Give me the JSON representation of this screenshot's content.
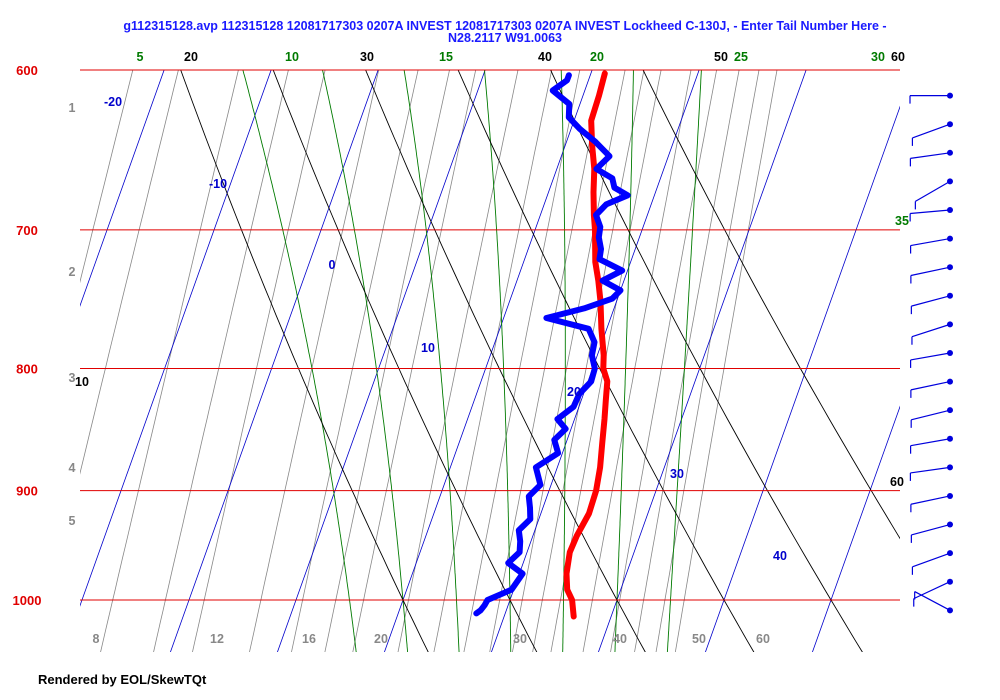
{
  "title": {
    "line1": "g112315128.avp 112315128 12081717303 0207A INVEST 12081717303 0207A INVEST Lockheed C-130J, - Enter Tail Number Here -",
    "line2": "N28.2117 W91.0063"
  },
  "credit": "Rendered by EOL/SkewTQt",
  "chart_data": {
    "type": "line",
    "chart_kind": "skew-T log-P thermodynamic diagram",
    "y_axis": {
      "type": "log",
      "range_hpa": [
        1050,
        600
      ],
      "ticks": [
        "600",
        "700",
        "800",
        "900",
        "1000"
      ]
    },
    "x_axis": {
      "range_c": [
        -5,
        40
      ],
      "bottom_ticks": [
        "8",
        "12",
        "16",
        "20",
        "30",
        "40",
        "50",
        "60"
      ]
    },
    "isotherm_labels": [
      "-20",
      "-10",
      "0",
      "10",
      "20",
      "30",
      "40"
    ],
    "dry_adiabat_labels": [
      "20",
      "30",
      "40",
      "50",
      "60",
      "10",
      "60"
    ],
    "moist_adiabat_labels": [
      "5",
      "10",
      "15",
      "20",
      "25",
      "30",
      "35"
    ],
    "altitude_labels_km": [
      "1",
      "2",
      "3",
      "4",
      "5"
    ],
    "colors": {
      "temperature": "#ff0000",
      "dewpoint": "#0000ff",
      "isobar": "#e00000",
      "isotherm": "#0000cc",
      "dry_adiabat": "#000000",
      "moist_adiabat": "#007a00",
      "mixing_ratio": "#888888",
      "wind_barb": "#0000dd"
    },
    "series": [
      {
        "name": "Temperature",
        "points": [
          [
            1016,
            26.5
          ],
          [
            1000,
            25.8
          ],
          [
            990,
            25.0
          ],
          [
            975,
            24.4
          ],
          [
            955,
            24.0
          ],
          [
            940,
            24.1
          ],
          [
            920,
            24.5
          ],
          [
            900,
            24.4
          ],
          [
            880,
            24.0
          ],
          [
            860,
            23.4
          ],
          [
            840,
            22.8
          ],
          [
            825,
            22.3
          ],
          [
            810,
            21.8
          ],
          [
            800,
            21.0
          ],
          [
            790,
            20.6
          ],
          [
            770,
            19.5
          ],
          [
            750,
            18.5
          ],
          [
            735,
            17.6
          ],
          [
            722,
            16.7
          ],
          [
            700,
            15.6
          ],
          [
            690,
            15.0
          ],
          [
            675,
            14.2
          ],
          [
            660,
            13.5
          ],
          [
            645,
            12.5
          ],
          [
            630,
            11.6
          ],
          [
            615,
            11.5
          ],
          [
            602,
            11.3
          ]
        ]
      },
      {
        "name": "Dewpoint",
        "points": [
          [
            1013,
            17.3
          ],
          [
            1010,
            17.6
          ],
          [
            1005,
            17.8
          ],
          [
            1000,
            17.9
          ],
          [
            990,
            19.8
          ],
          [
            975,
            20.3
          ],
          [
            965,
            18.6
          ],
          [
            955,
            19.3
          ],
          [
            945,
            19.0
          ],
          [
            935,
            18.5
          ],
          [
            925,
            19.2
          ],
          [
            915,
            18.8
          ],
          [
            905,
            18.3
          ],
          [
            895,
            19.0
          ],
          [
            880,
            18.0
          ],
          [
            868,
            19.6
          ],
          [
            857,
            18.8
          ],
          [
            848,
            19.5
          ],
          [
            840,
            18.4
          ],
          [
            830,
            19.5
          ],
          [
            820,
            19.6
          ],
          [
            810,
            20.3
          ],
          [
            800,
            20.2
          ],
          [
            790,
            19.5
          ],
          [
            780,
            19.3
          ],
          [
            770,
            18.3
          ],
          [
            762,
            14.0
          ],
          [
            755,
            17.2
          ],
          [
            748,
            19.5
          ],
          [
            742,
            20.0
          ],
          [
            735,
            18.0
          ],
          [
            728,
            19.5
          ],
          [
            720,
            17.0
          ],
          [
            713,
            16.8
          ],
          [
            705,
            16.2
          ],
          [
            698,
            16.0
          ],
          [
            690,
            15.2
          ],
          [
            683,
            15.8
          ],
          [
            677,
            17.5
          ],
          [
            672,
            16.0
          ],
          [
            666,
            15.5
          ],
          [
            660,
            13.7
          ],
          [
            652,
            14.5
          ],
          [
            643,
            12.7
          ],
          [
            635,
            10.8
          ],
          [
            628,
            9.4
          ],
          [
            620,
            9.0
          ],
          [
            612,
            7.0
          ],
          [
            606,
            8.0
          ],
          [
            603,
            8.0
          ]
        ]
      }
    ],
    "wind_profile": {
      "barb_count": 19,
      "top_hpa": 615,
      "bottom_hpa": 1010
    }
  }
}
